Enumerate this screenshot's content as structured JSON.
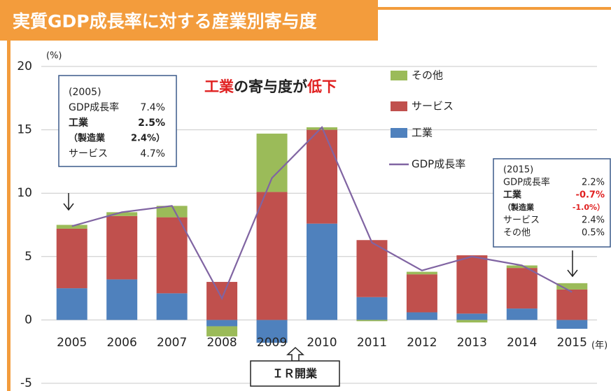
{
  "chart_data": {
    "type": "bar",
    "title": "実質GDP成長率に対する産業別寄与度",
    "y_axis_label": "(%)",
    "x_axis_label": "(年)",
    "headline": [
      "工業",
      "の寄与度が",
      "低下"
    ],
    "categories": [
      "2005",
      "2006",
      "2007",
      "2008",
      "2009",
      "2010",
      "2011",
      "2012",
      "2013",
      "2014",
      "2015"
    ],
    "series": [
      {
        "name": "工業",
        "type": "bar",
        "color": "#4f81bd",
        "values": [
          2.5,
          3.2,
          2.1,
          -0.5,
          -1.8,
          7.6,
          1.8,
          0.6,
          0.5,
          0.9,
          -0.7
        ]
      },
      {
        "name": "サービス",
        "type": "bar",
        "color": "#c0504d",
        "values": [
          4.7,
          5.0,
          6.0,
          3.0,
          10.1,
          7.4,
          4.5,
          3.0,
          4.6,
          3.2,
          2.4
        ]
      },
      {
        "name": "その他",
        "type": "bar",
        "color": "#9bbb59",
        "values": [
          0.3,
          0.3,
          0.9,
          -0.8,
          4.6,
          0.2,
          -0.1,
          0.2,
          -0.2,
          0.2,
          0.5
        ]
      },
      {
        "name": "GDP成長率",
        "type": "line",
        "color": "#8064a2",
        "values": [
          7.4,
          8.5,
          9.0,
          1.7,
          11.2,
          15.2,
          6.1,
          3.9,
          5.0,
          4.3,
          2.2
        ]
      }
    ],
    "stacked": true,
    "ylim": [
      -5,
      20
    ],
    "yticks": [
      -5,
      0,
      5,
      10,
      15,
      20
    ],
    "grid": true,
    "annotations": [
      {
        "title": "(2005)",
        "rows": [
          [
            "GDP成長率",
            "7.4%"
          ],
          [
            "工業",
            "2.5%"
          ],
          [
            "（製造業",
            "2.4%）"
          ],
          [
            "サービス",
            "4.7%"
          ]
        ]
      },
      {
        "title": "(2015)",
        "rows": [
          [
            "GDP成長率",
            "2.2%"
          ],
          [
            "工業",
            "-0.7%"
          ],
          [
            "（製造業",
            "-1.0%）"
          ],
          [
            "サービス",
            "2.4%"
          ],
          [
            "その他",
            "0.5%"
          ]
        ]
      },
      {
        "text": "ＩＲ開業"
      }
    ]
  }
}
